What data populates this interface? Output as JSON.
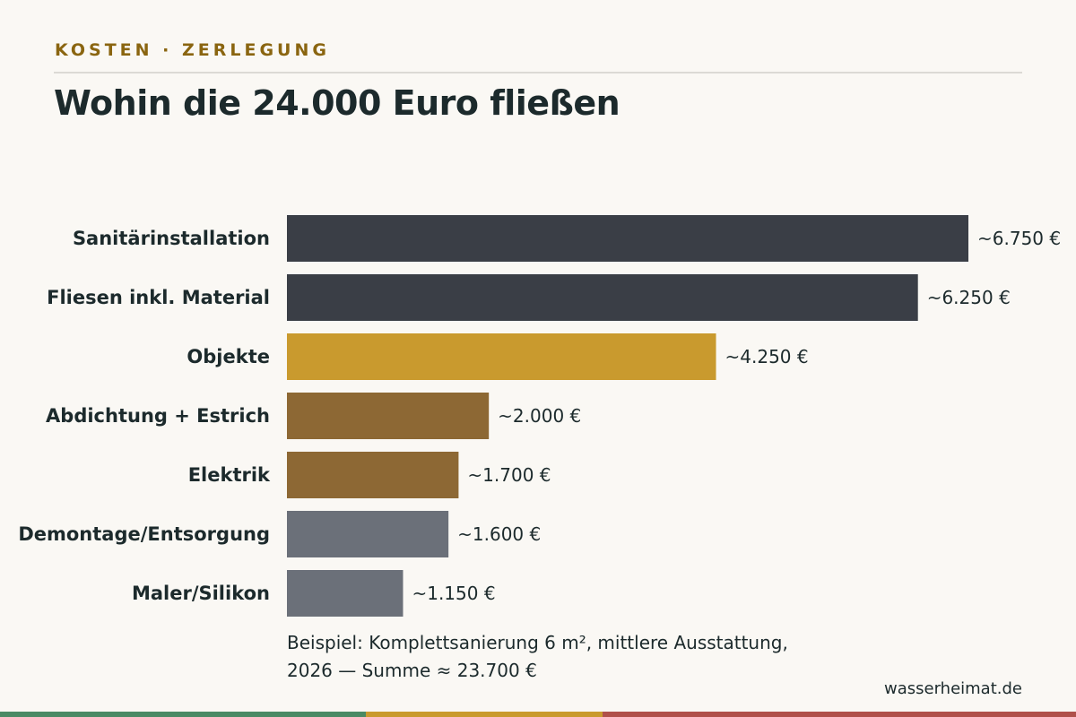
{
  "header": {
    "kicker": "KOSTEN · ZERLEGUNG",
    "title": "Wohin die 24.000 Euro fließen"
  },
  "chart_data": {
    "type": "bar",
    "orientation": "horizontal",
    "categories": [
      "Sanitärinstallation",
      "Fliesen inkl. Material",
      "Objekte",
      "Abdichtung + Estrich",
      "Elektrik",
      "Demontage/Entsorgung",
      "Maler/Silikon"
    ],
    "values": [
      6750,
      6250,
      4250,
      2000,
      1700,
      1600,
      1150
    ],
    "value_labels": [
      "~6.750 €",
      "~6.250 €",
      "~4.250 €",
      "~2.000 €",
      "~1.700 €",
      "~1.600 €",
      "~1.150 €"
    ],
    "colors": [
      "#3a3e46",
      "#3a3e46",
      "#c99a2e",
      "#8d6834",
      "#8d6834",
      "#6b7079",
      "#6b7079"
    ],
    "xlim": [
      0,
      6750
    ],
    "grid": false,
    "legend": "none"
  },
  "footer": {
    "note_line1": "Beispiel: Komplettsanierung 6 m², mittlere Ausstattung,",
    "note_line2": "2026 — Summe ≈ 23.700 €",
    "source": "wasserheimat.de",
    "stripe_colors": [
      "#4a8a64",
      "#c99a2e",
      "#b0504a"
    ]
  }
}
